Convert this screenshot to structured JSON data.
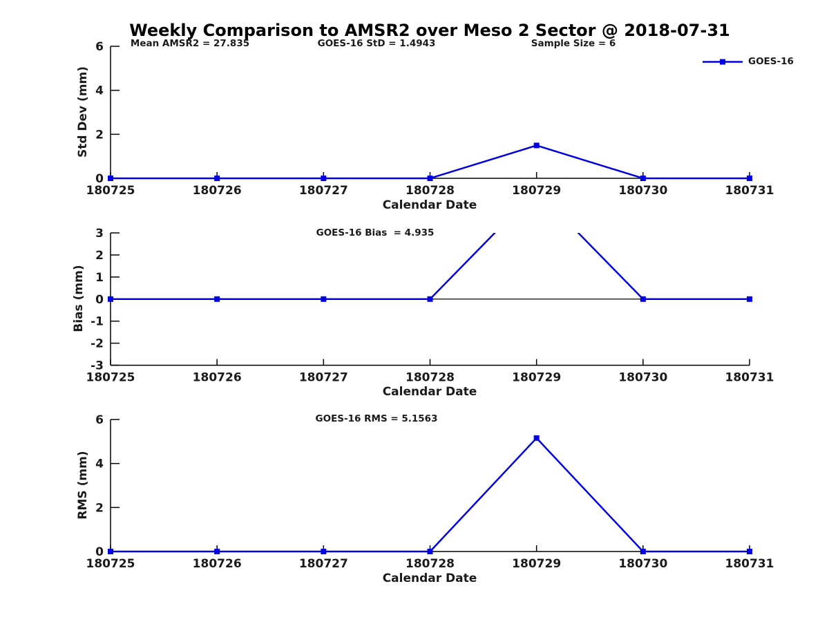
{
  "title": "Weekly Comparison to AMSR2 over Meso 2 Sector @ 2018-07-31",
  "xlabel": "Calendar Date",
  "legend": {
    "label": "GOES-16"
  },
  "colors": {
    "line": "#0000e0",
    "axis": "#000000",
    "text": "#1a1a1a"
  },
  "chart_data": [
    {
      "type": "line",
      "name": "std-dev",
      "ylabel": "Std Dev (mm)",
      "xlabel": "Calendar Date",
      "ylim": [
        0,
        6
      ],
      "yticks": [
        0,
        2,
        4,
        6
      ],
      "categories": [
        "180725",
        "180726",
        "180727",
        "180728",
        "180729",
        "180730",
        "180731"
      ],
      "series": [
        {
          "name": "GOES-16",
          "values": [
            0,
            0,
            0,
            0,
            1.4943,
            0,
            0
          ]
        }
      ],
      "annotations": [
        "Mean AMSR2 = 27.835",
        "GOES-16 StD = 1.4943",
        "Sample Size = 6"
      ],
      "legend_position": "top-right",
      "grid": false,
      "zero_line": false
    },
    {
      "type": "line",
      "name": "bias",
      "ylabel": "Bias (mm)",
      "xlabel": "Calendar Date",
      "ylim": [
        -3,
        3
      ],
      "yticks": [
        -3,
        -2,
        -1,
        0,
        1,
        2,
        3
      ],
      "categories": [
        "180725",
        "180726",
        "180727",
        "180728",
        "180729",
        "180730",
        "180731"
      ],
      "series": [
        {
          "name": "GOES-16",
          "values": [
            0,
            0,
            0,
            0,
            4.935,
            0,
            0
          ]
        }
      ],
      "annotations": [
        "GOES-16 Bias  = 4.935"
      ],
      "grid": false,
      "zero_line": true
    },
    {
      "type": "line",
      "name": "rms",
      "ylabel": "RMS (mm)",
      "xlabel": "Calendar Date",
      "ylim": [
        0,
        6
      ],
      "yticks": [
        0,
        2,
        4,
        6
      ],
      "categories": [
        "180725",
        "180726",
        "180727",
        "180728",
        "180729",
        "180730",
        "180731"
      ],
      "series": [
        {
          "name": "GOES-16",
          "values": [
            0,
            0,
            0,
            0,
            5.1563,
            0,
            0
          ]
        }
      ],
      "annotations": [
        "GOES-16 RMS = 5.1563"
      ],
      "grid": false,
      "zero_line": false
    }
  ]
}
